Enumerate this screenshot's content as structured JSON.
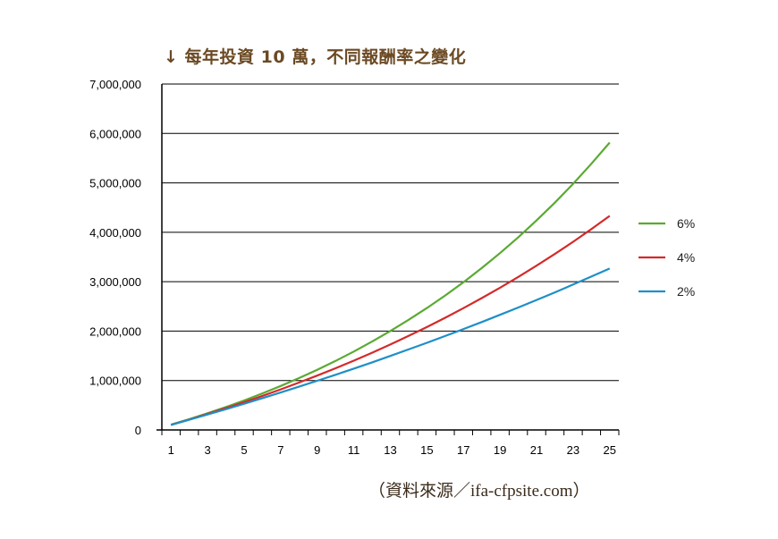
{
  "title": "↓ 每年投資 10 萬，不同報酬率之變化",
  "source": "（資料來源／ifa-cfpsite.com）",
  "chart_data": {
    "type": "line",
    "title": "每年投資 10 萬，不同報酬率之變化",
    "xlabel": "",
    "ylabel": "",
    "x": [
      1,
      2,
      3,
      4,
      5,
      6,
      7,
      8,
      9,
      10,
      11,
      12,
      13,
      14,
      15,
      16,
      17,
      18,
      19,
      20,
      21,
      22,
      23,
      24,
      25
    ],
    "x_tick_labels": [
      "1",
      "3",
      "5",
      "7",
      "9",
      "11",
      "15",
      "17",
      "19",
      "21",
      "23",
      "25"
    ],
    "x_tick_labels_all": [
      "1",
      "3",
      "5",
      "7",
      "9",
      "11",
      "13",
      "15",
      "17",
      "19",
      "21",
      "23",
      "25"
    ],
    "y_tick_labels": [
      "0",
      "1,000,000",
      "2,000,000",
      "3,000,000",
      "4,000,000",
      "5,000,000",
      "6,000,000",
      "7,000,000"
    ],
    "ylim": [
      0,
      7000000
    ],
    "grid": "horizontal",
    "legend_position": "right",
    "series": [
      {
        "name": "6%",
        "color": "#5aaa32",
        "values": [
          106000,
          218360,
          337462,
          463709,
          597532,
          739384,
          889746,
          1049132,
          1218079,
          1397165,
          1586995,
          1788213,
          2001506,
          2227597,
          2467252,
          2721289,
          2990566,
          3275999,
          3578560,
          3899272,
          4239230,
          4599582,
          4981558,
          5386452,
          5815639
        ]
      },
      {
        "name": "4%",
        "color": "#d42a2a",
        "values": [
          104000,
          212160,
          324646,
          441633,
          563298,
          689829,
          821423,
          958279,
          1100611,
          1248634,
          1402581,
          1562683,
          1729192,
          1902358,
          2082454,
          2269751,
          2464540,
          2667124,
          2877807,
          3096920,
          3324797,
          3561789,
          3808262,
          4064590,
          4331174
        ]
      },
      {
        "name": "2%",
        "color": "#1e8fc8",
        "values": [
          102000,
          206040,
          312161,
          420403,
          530813,
          643426,
          758299,
          875461,
          994974,
          1116869,
          1241207,
          1368034,
          1497396,
          1629343,
          1763927,
          1901209,
          2041229,
          2184055,
          2329736,
          2478330,
          2629897,
          2784498,
          2942185,
          3103029,
          3267091
        ]
      }
    ]
  }
}
